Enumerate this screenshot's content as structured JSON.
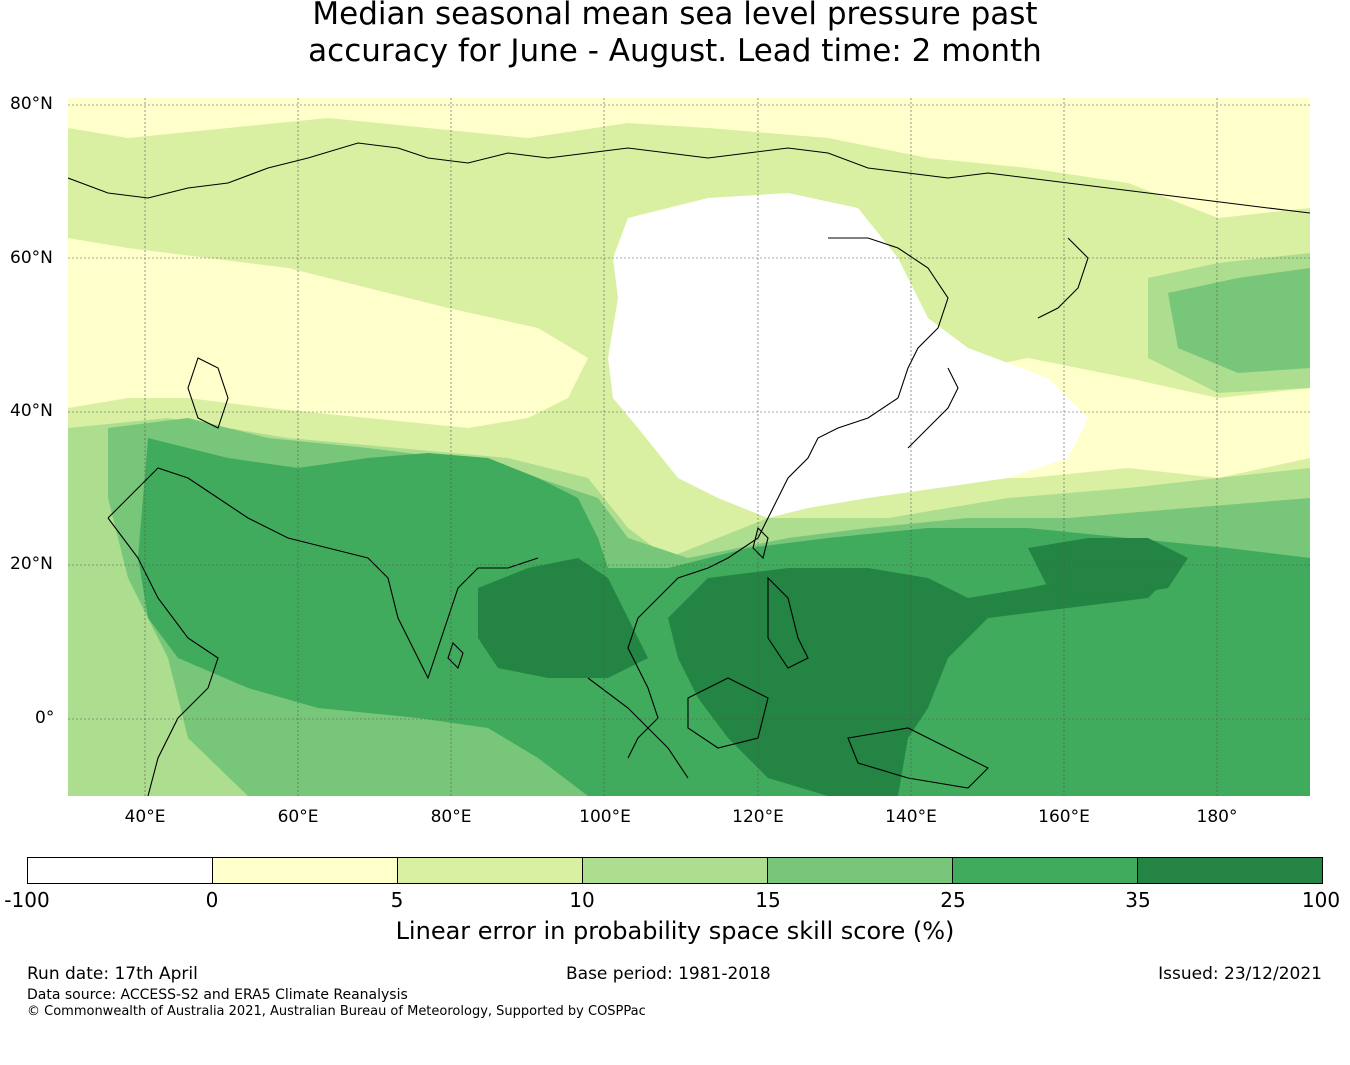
{
  "title": {
    "line1": "Median seasonal mean sea level pressure past",
    "line2": "accuracy for June - August. Lead time: 2 month"
  },
  "map": {
    "projection": "PlateCarree",
    "lon_range": [
      30,
      192
    ],
    "lat_range": [
      -10,
      81
    ],
    "lat_ticks": [
      "80°N",
      "60°N",
      "40°N",
      "20°N",
      "0°"
    ],
    "lon_ticks": [
      "40°E",
      "60°E",
      "80°E",
      "100°E",
      "120°E",
      "140°E",
      "160°E",
      "180°"
    ],
    "gridlines": true,
    "coastlines": true
  },
  "colorbar": {
    "boundaries": [
      "-100",
      "0",
      "5",
      "10",
      "15",
      "25",
      "35",
      "100"
    ],
    "colors": [
      "#ffffff",
      "#ffffcc",
      "#d9f0a3",
      "#addd8e",
      "#78c679",
      "#41ab5d",
      "#238443"
    ],
    "label": "Linear error in probability space skill score (%)"
  },
  "footer": {
    "run_date": "Run date: 17th April",
    "base_period": "Base period: 1981-2018",
    "issued": "Issued: 23/12/2021",
    "data_source": "Data source: ACCESS-S2 and ERA5 Climate Reanalysis",
    "copyright": "© Commonwealth of Australia 2021, Australian Bureau of Meteorology, Supported by COSPPac"
  }
}
